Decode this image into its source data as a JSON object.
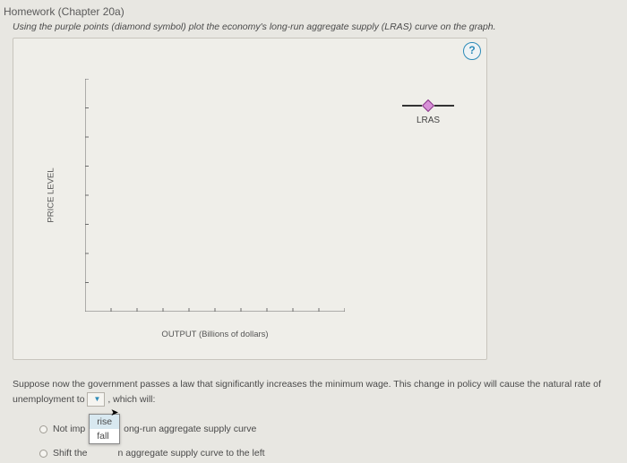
{
  "title": "Homework (Chapter 20a)",
  "instruction": "Using the purple points (diamond symbol) plot the economy's long-run aggregate supply (LRAS) curve on the graph.",
  "help_symbol": "?",
  "chart": {
    "type": "line",
    "background_color": "#efeee9",
    "border_color": "#c8c5bd",
    "axis_color": "#6b6b6b",
    "y_axis": {
      "title": "PRICE LEVEL",
      "min": 100,
      "max": 132,
      "tick_step": 4,
      "ticks": [
        100,
        104,
        108,
        112,
        116,
        120,
        124,
        128,
        132
      ]
    },
    "x_axis": {
      "title": "OUTPUT (Billions of dollars)",
      "min": 0,
      "max": 100,
      "tick_step": 10,
      "ticks": [
        0,
        10,
        20,
        30,
        40,
        50,
        60,
        70,
        80,
        90,
        100
      ]
    },
    "legend": {
      "label": "LRAS",
      "line_color": "#333333",
      "marker": "diamond",
      "marker_fill": "#d890d8",
      "marker_stroke": "#8b3a8b"
    }
  },
  "paragraph": {
    "pre": "Suppose now the government passes a law that significantly increases the minimum wage. This change in policy will cause the natural rate of unemployment to ",
    "dd_blank": " ",
    "post": " , which will:"
  },
  "options": {
    "opt1": {
      "pre": "Not imp",
      "post": "ong-run aggregate supply curve"
    },
    "opt2": {
      "pre": "Shift the",
      "post": "n aggregate supply curve to the left"
    }
  },
  "dropdown_open": {
    "item1": "rise",
    "item2": "fall"
  }
}
